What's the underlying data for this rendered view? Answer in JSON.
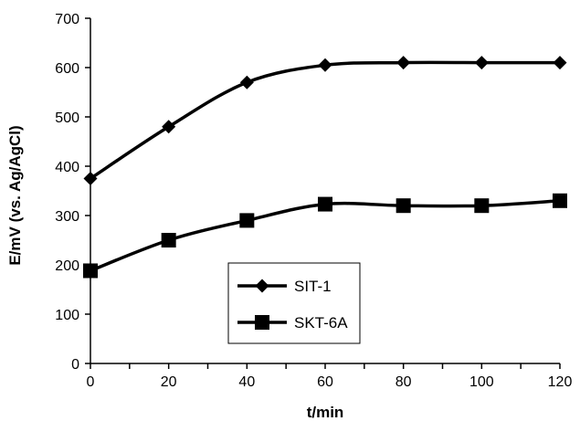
{
  "chart_data": {
    "type": "line",
    "x": [
      0,
      20,
      40,
      60,
      80,
      100,
      120
    ],
    "xlim": [
      0,
      120
    ],
    "x_ticks": [
      0,
      20,
      40,
      60,
      80,
      100,
      120
    ],
    "ylim": [
      0,
      700
    ],
    "y_ticks": [
      0,
      100,
      200,
      300,
      400,
      500,
      600,
      700
    ],
    "xlabel": "t/min",
    "ylabel": "E/mV (vs. Ag/AgCl)",
    "grid": false,
    "smooth": true,
    "legend": {
      "position": "lower-center",
      "frame": true
    },
    "series": [
      {
        "name": "SIT-1",
        "marker": "diamond",
        "color": "#000000",
        "values": [
          375,
          480,
          570,
          605,
          610,
          610,
          610
        ]
      },
      {
        "name": "SKT-6A",
        "marker": "square",
        "color": "#000000",
        "values": [
          188,
          250,
          290,
          323,
          320,
          320,
          330
        ]
      }
    ]
  }
}
